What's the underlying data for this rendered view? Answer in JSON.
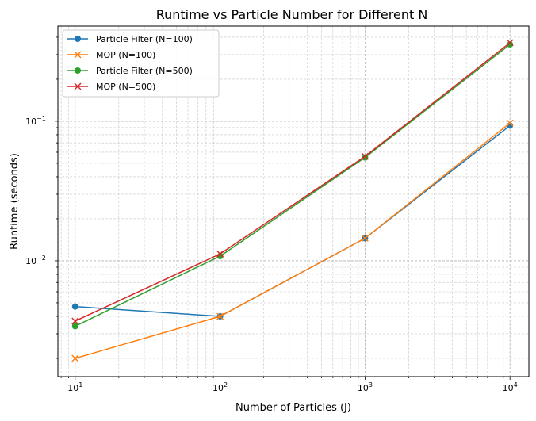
{
  "chart_data": {
    "type": "line",
    "title": "Runtime vs Particle Number for Different N",
    "xlabel": "Number of Particles (J)",
    "ylabel": "Runtime (seconds)",
    "xscale": "log",
    "yscale": "log",
    "xlim": [
      7.6,
      13500
    ],
    "ylim": [
      0.00148,
      0.48
    ],
    "grid": true,
    "legend_position": "top-left",
    "x": [
      10,
      100,
      1000,
      10000
    ],
    "x_ticks": [
      {
        "value": 10,
        "base": "10",
        "exp": "1"
      },
      {
        "value": 100,
        "base": "10",
        "exp": "2"
      },
      {
        "value": 1000,
        "base": "10",
        "exp": "3"
      },
      {
        "value": 10000,
        "base": "10",
        "exp": "4"
      }
    ],
    "y_ticks": [
      {
        "value": 0.01,
        "base": "10",
        "exp": "−2"
      },
      {
        "value": 0.1,
        "base": "10",
        "exp": "−1"
      }
    ],
    "series": [
      {
        "name": "Particle Filter (N=100)",
        "color": "#1f77b4",
        "marker": "circle",
        "values": [
          0.0047,
          0.004,
          0.0145,
          0.093
        ]
      },
      {
        "name": "MOP (N=100)",
        "color": "#ff7f0e",
        "marker": "x",
        "values": [
          0.002,
          0.004,
          0.0145,
          0.097
        ]
      },
      {
        "name": "Particle Filter (N=500)",
        "color": "#2ca02c",
        "marker": "circle",
        "values": [
          0.0034,
          0.0108,
          0.055,
          0.355
        ]
      },
      {
        "name": "MOP (N=500)",
        "color": "#d62728",
        "marker": "x",
        "values": [
          0.0037,
          0.0112,
          0.056,
          0.365
        ]
      }
    ]
  }
}
